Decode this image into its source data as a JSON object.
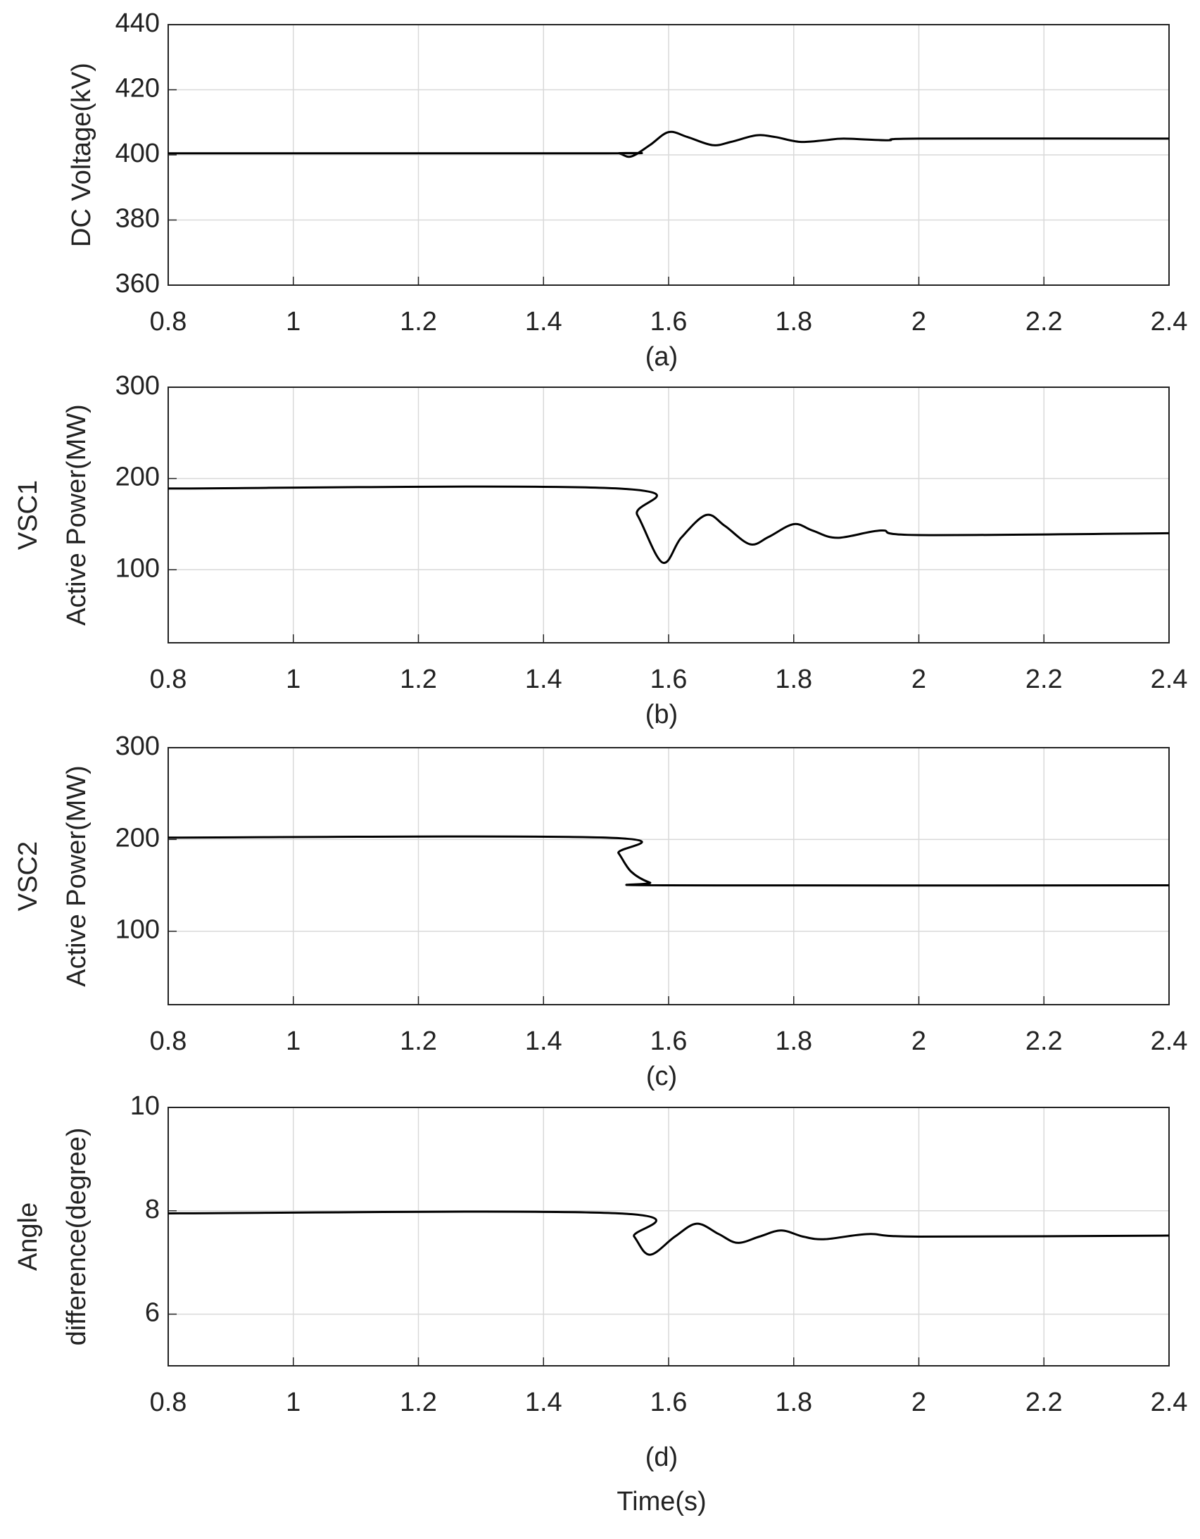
{
  "chart_data": [
    {
      "type": "line",
      "caption": "(a)",
      "ylabel": [
        "DC Voltage(kV)"
      ],
      "x": [
        0.8,
        1.5,
        1.52,
        1.54,
        1.57,
        1.6,
        1.63,
        1.67,
        1.7,
        1.74,
        1.77,
        1.81,
        1.85,
        1.88,
        1.95,
        2.0,
        2.4
      ],
      "values": [
        400.5,
        400.5,
        400.5,
        399.5,
        403,
        407,
        405.5,
        403,
        404,
        406,
        405.5,
        404,
        404.5,
        405,
        404.5,
        405,
        405
      ],
      "color": "#000000",
      "xlim": [
        0.8,
        2.4
      ],
      "xticks": [
        0.8,
        1,
        1.2,
        1.4,
        1.6,
        1.8,
        2,
        2.2,
        2.4
      ],
      "ylim": [
        360,
        440
      ],
      "yticks": [
        360,
        380,
        400,
        420,
        440
      ],
      "grid": true
    },
    {
      "type": "line",
      "caption": "(b)",
      "ylabel": [
        "VSC1",
        "Active Power(MW)"
      ],
      "x": [
        0.8,
        1.52,
        1.55,
        1.59,
        1.62,
        1.66,
        1.69,
        1.73,
        1.76,
        1.8,
        1.83,
        1.87,
        1.94,
        2.0,
        2.4
      ],
      "values": [
        189,
        189,
        160,
        108,
        135,
        160,
        148,
        128,
        136,
        150,
        143,
        135,
        143,
        138,
        140
      ],
      "color": "#000000",
      "xlim": [
        0.8,
        2.4
      ],
      "xticks": [
        0.8,
        1,
        1.2,
        1.4,
        1.6,
        1.8,
        2,
        2.2,
        2.4
      ],
      "ylim": [
        20,
        300
      ],
      "yticks": [
        100,
        200,
        300
      ],
      "grid": true
    },
    {
      "type": "line",
      "caption": "(c)",
      "ylabel": [
        "VSC2",
        "Active Power(MW)"
      ],
      "x": [
        0.8,
        1.5,
        1.52,
        1.54,
        1.57,
        1.6,
        2.4
      ],
      "values": [
        202,
        202,
        185,
        165,
        153,
        150,
        150
      ],
      "color": "#000000",
      "xlim": [
        0.8,
        2.4
      ],
      "xticks": [
        0.8,
        1,
        1.2,
        1.4,
        1.6,
        1.8,
        2,
        2.2,
        2.4
      ],
      "ylim": [
        20,
        300
      ],
      "yticks": [
        100,
        200,
        300
      ],
      "grid": true
    },
    {
      "type": "line",
      "caption": "(d)",
      "ylabel": [
        "Angle",
        "difference(degree)"
      ],
      "xlabel": "Time(s)",
      "x": [
        0.8,
        1.52,
        1.545,
        1.57,
        1.61,
        1.645,
        1.68,
        1.71,
        1.745,
        1.78,
        1.815,
        1.85,
        1.92,
        2.0,
        2.4
      ],
      "values": [
        7.95,
        7.95,
        7.5,
        7.15,
        7.5,
        7.75,
        7.55,
        7.38,
        7.5,
        7.62,
        7.5,
        7.45,
        7.55,
        7.5,
        7.52
      ],
      "color": "#000000",
      "xlim": [
        0.8,
        2.4
      ],
      "xticks": [
        0.8,
        1,
        1.2,
        1.4,
        1.6,
        1.8,
        2,
        2.2,
        2.4
      ],
      "ylim": [
        5,
        10
      ],
      "yticks": [
        6,
        8,
        10
      ],
      "grid": true
    }
  ]
}
